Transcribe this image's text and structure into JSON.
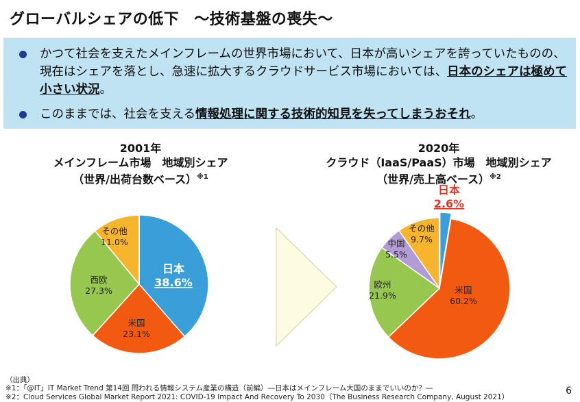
{
  "title": {
    "main": "グローバルシェアの低下",
    "sub": "～技術基盤の喪失～"
  },
  "bullets": [
    {
      "pre": "かつて社会を支えたメインフレームの世界市場において、日本が高いシェアを誇っていたものの、現在はシェアを落とし、急速に拡大するクラウドサービス市場においては、",
      "emph": "日本のシェアは極めて小さい状況",
      "post": "。"
    },
    {
      "pre": "このままでは、社会を支える",
      "emph": "情報処理に関する技術的知見を失ってしまうおそれ",
      "post": "。"
    }
  ],
  "chart_data": [
    {
      "type": "pie",
      "title_lines": [
        "2001年",
        "メインフレーム市場　地域別シェア",
        "（世界/出荷台数ベース）"
      ],
      "note_mark": "※1",
      "slices": [
        {
          "label": "日本",
          "value": 38.6,
          "value_text": "38.6%",
          "color": "#3a9fd8"
        },
        {
          "label": "米国",
          "value": 23.1,
          "value_text": "23.1%",
          "color": "#f25a12"
        },
        {
          "label": "西欧",
          "value": 27.3,
          "value_text": "27.3%",
          "color": "#97c74f"
        },
        {
          "label": "その他",
          "value": 11.0,
          "value_text": "11.0%",
          "color": "#f7b52e"
        }
      ]
    },
    {
      "type": "pie",
      "title_lines": [
        "2020年",
        "クラウド（IaaS/PaaS）市場　地域別シェア",
        "（世界/売上高ベース）"
      ],
      "note_mark": "※2",
      "slices": [
        {
          "label": "日本",
          "value": 2.6,
          "value_text": "2.6%",
          "color": "#3a9fd8"
        },
        {
          "label": "米国",
          "value": 60.2,
          "value_text": "60.2%",
          "color": "#f25a12"
        },
        {
          "label": "欧州",
          "value": 21.9,
          "value_text": "21.9%",
          "color": "#97c74f"
        },
        {
          "label": "中国",
          "value": 5.5,
          "value_text": "5.5%",
          "color": "#b39bd6"
        },
        {
          "label": "その他",
          "value": 9.7,
          "value_text": "9.7%",
          "color": "#f7b52e"
        }
      ]
    }
  ],
  "footnotes": {
    "heading": "（出典）",
    "n1": "※1：「@IT」IT Market Trend 第14回 問われる情報システム産業の構造（前編）―日本はメインフレーム大国のままでいいのか？―",
    "n2": "※2：Cloud Services Global Market Report 2021: COVID-19 Impact And Recovery To 2030（The Business Research Company, August 2021）"
  },
  "page_number": "6"
}
